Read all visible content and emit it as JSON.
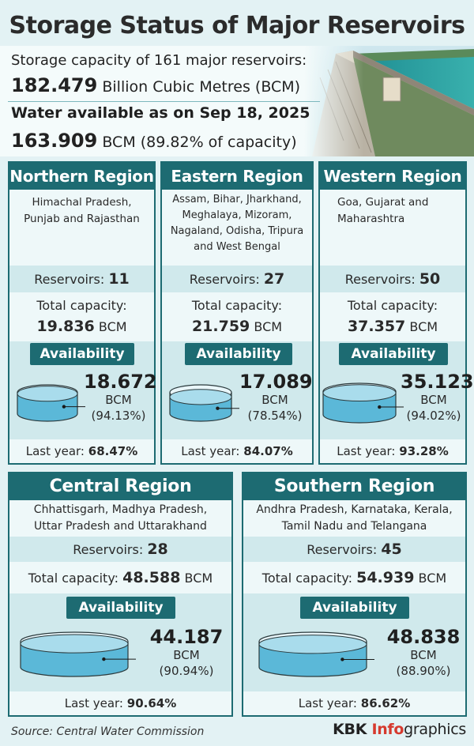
{
  "title": "Storage Status of Major Reservoirs",
  "header": {
    "capacity_line": "Storage capacity of 161 major reservoirs:",
    "capacity_value": "182.479",
    "capacity_unit": "Billion Cubic Metres (BCM)",
    "available_line": "Water available as on Sep 18, 2025",
    "available_value": "163.909",
    "available_unit": "BCM (89.82% of capacity)"
  },
  "labels": {
    "reservoirs": "Reservoirs:",
    "total_capacity": "Total capacity:",
    "availability": "Availability",
    "bcm": "BCM",
    "last_year": "Last year:"
  },
  "regions": [
    {
      "name": "Northern Region",
      "states": "Himachal Pradesh, Punjab and Rajasthan",
      "reservoirs": "11",
      "capacity": "19.836",
      "available": "18.672",
      "percent": "(94.13%)",
      "fill_fraction": 0.9413,
      "last_year": "68.47%"
    },
    {
      "name": "Eastern Region",
      "states": "Assam, Bihar, Jharkhand, Meghalaya, Mizoram, Nagaland, Odisha, Tripura and West Bengal",
      "reservoirs": "27",
      "capacity": "21.759",
      "available": "17.089",
      "percent": "(78.54%)",
      "fill_fraction": 0.7854,
      "last_year": "84.07%"
    },
    {
      "name": "Western Region",
      "states": "Goa, Gujarat and Maharashtra",
      "reservoirs": "50",
      "capacity": "37.357",
      "available": "35.123",
      "percent": "(94.02%)",
      "fill_fraction": 0.9402,
      "last_year": "93.28%"
    },
    {
      "name": "Central Region",
      "states": "Chhattisgarh, Madhya Pradesh, Uttar Pradesh and Uttarakhand",
      "reservoirs": "28",
      "capacity": "48.588",
      "available": "44.187",
      "percent": "(90.94%)",
      "fill_fraction": 0.9094,
      "last_year": "90.64%"
    },
    {
      "name": "Southern Region",
      "states": "Andhra Pradesh, Karnataka, Kerala, Tamil Nadu and Telangana",
      "reservoirs": "45",
      "capacity": "54.939",
      "available": "48.838",
      "percent": "(88.90%)",
      "fill_fraction": 0.889,
      "last_year": "86.62%"
    }
  ],
  "footer": {
    "source": "Source: Central Water Commission",
    "brand_prefix": "KBK ",
    "brand_accent": "Info",
    "brand_suffix": "graphics"
  },
  "colors": {
    "teal": "#1d6b72",
    "water": "#5bb8d8",
    "water_light": "#a9dcec",
    "accent": "#d63a2e"
  }
}
